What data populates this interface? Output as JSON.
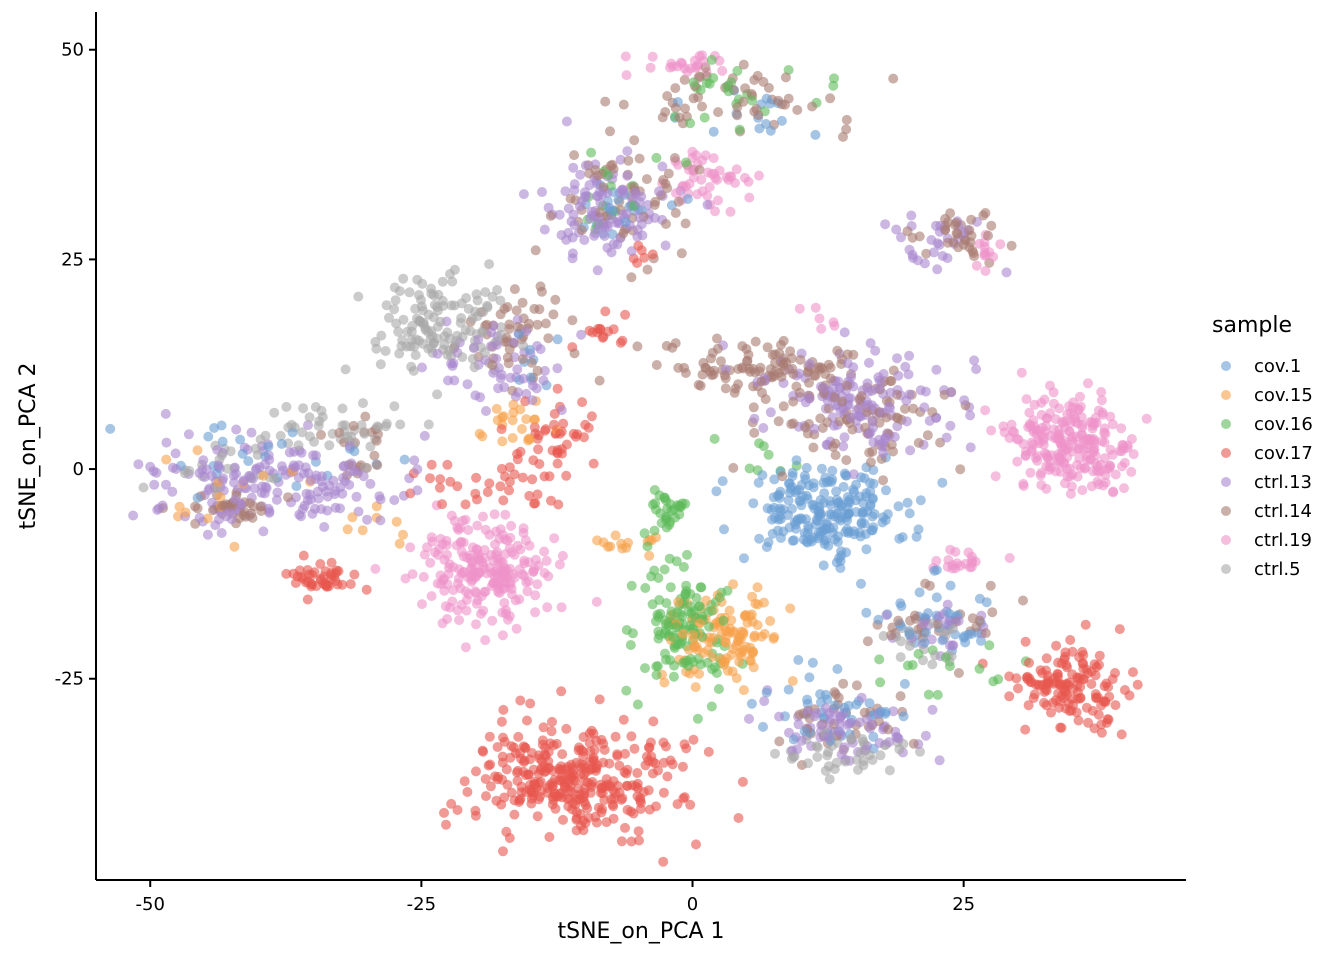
{
  "chart_data": {
    "type": "scatter",
    "xlabel": "tSNE_on_PCA 1",
    "ylabel": "tSNE_on_PCA 2",
    "xlim": [
      -55,
      45.5
    ],
    "ylim": [
      -49,
      54.5
    ],
    "x_ticks": [
      -50,
      -25,
      0,
      25
    ],
    "y_ticks": [
      50,
      25,
      0,
      -25
    ],
    "x_tick_labels": [
      "-50",
      "-25",
      "0",
      "25"
    ],
    "y_tick_labels": [
      "50",
      "25",
      "0",
      "-25"
    ],
    "grid": false,
    "legend": {
      "title": "sample",
      "placement": "right",
      "entries": [
        "cov.1",
        "cov.15",
        "cov.16",
        "cov.17",
        "ctrl.13",
        "ctrl.14",
        "ctrl.19",
        "ctrl.5"
      ]
    },
    "colors": {
      "cov.1": "#6a9ed4",
      "cov.15": "#f7a04a",
      "cov.16": "#5dbb5a",
      "cov.17": "#e8574f",
      "ctrl.13": "#a987cf",
      "ctrl.14": "#a87c72",
      "ctrl.19": "#ee93c9",
      "ctrl.5": "#a9a9a9"
    },
    "series": [
      {
        "name": "cov.1",
        "clusters": [
          [
            12,
            -5,
            5,
            3.5,
            220
          ],
          [
            13,
            -29,
            4,
            3,
            45
          ],
          [
            22,
            -18,
            4,
            3,
            45
          ],
          [
            -40,
            1,
            7,
            3,
            25
          ],
          [
            5,
            42,
            5,
            3,
            15
          ],
          [
            -7,
            31,
            3,
            3,
            20
          ],
          [
            -15,
            13,
            2,
            2,
            8
          ]
        ]
      },
      {
        "name": "cov.15",
        "clusters": [
          [
            3,
            -20,
            3.5,
            3.5,
            120
          ],
          [
            -16,
            6,
            2.5,
            2,
            22
          ],
          [
            -7,
            -9,
            3,
            1,
            14
          ],
          [
            -44,
            -2,
            5,
            4,
            14
          ],
          [
            -30,
            -6,
            3,
            2,
            8
          ]
        ]
      },
      {
        "name": "cov.16",
        "clusters": [
          [
            -1,
            -19,
            3,
            5,
            130
          ],
          [
            -2,
            -5,
            1.5,
            1.5,
            30
          ],
          [
            5,
            45,
            5,
            3,
            25
          ],
          [
            -8,
            32,
            4,
            3,
            15
          ],
          [
            22,
            -24,
            4,
            3,
            15
          ],
          [
            6,
            1,
            3,
            2,
            8
          ]
        ]
      },
      {
        "name": "cov.17",
        "clusters": [
          [
            -11,
            -37,
            6.5,
            4.5,
            330
          ],
          [
            35,
            -26,
            3.5,
            3.5,
            140
          ],
          [
            -34,
            -13,
            2,
            1.5,
            45
          ],
          [
            -13,
            4,
            2.5,
            3,
            40
          ],
          [
            -18,
            -2,
            5,
            2,
            35
          ],
          [
            -8,
            16,
            1.5,
            1.5,
            15
          ],
          [
            -5,
            25,
            1,
            1,
            6
          ]
        ]
      },
      {
        "name": "ctrl.13",
        "clusters": [
          [
            -38,
            -2,
            9,
            3.5,
            180
          ],
          [
            15,
            8,
            6,
            4,
            150
          ],
          [
            -8,
            31,
            4,
            4,
            110
          ],
          [
            14,
            -31,
            4.5,
            2.5,
            70
          ],
          [
            -18,
            12,
            5,
            4,
            55
          ],
          [
            23,
            27,
            3,
            3,
            30
          ],
          [
            23,
            -19,
            3,
            2,
            25
          ]
        ]
      },
      {
        "name": "ctrl.14",
        "clusters": [
          [
            7,
            12,
            6,
            2,
            100
          ],
          [
            -42,
            -5,
            3,
            1.5,
            35
          ],
          [
            -16,
            16,
            3,
            4,
            50
          ],
          [
            16,
            6,
            6,
            4,
            90
          ],
          [
            -6,
            32,
            4,
            4,
            60
          ],
          [
            4,
            44,
            7,
            3,
            55
          ],
          [
            24,
            28,
            3,
            2,
            35
          ],
          [
            14,
            -30,
            4,
            3,
            35
          ],
          [
            23,
            -18,
            4,
            3,
            30
          ],
          [
            -30,
            3,
            3,
            3,
            20
          ]
        ]
      },
      {
        "name": "ctrl.19",
        "clusters": [
          [
            -19,
            -12,
            4,
            4,
            220
          ],
          [
            35,
            3,
            4,
            3.5,
            230
          ],
          [
            1,
            34,
            3,
            2,
            45
          ],
          [
            0,
            48,
            3,
            1,
            25
          ],
          [
            25,
            -11,
            2,
            1,
            20
          ],
          [
            27,
            26,
            1.5,
            1.5,
            12
          ],
          [
            12,
            18,
            1,
            1,
            6
          ]
        ]
      },
      {
        "name": "ctrl.5",
        "clusters": [
          [
            -23,
            17,
            4,
            4,
            130
          ],
          [
            -33,
            5,
            5,
            3,
            45
          ],
          [
            -43,
            0,
            4,
            2,
            20
          ],
          [
            14,
            -34,
            4,
            2,
            45
          ],
          [
            22,
            -21,
            3,
            2,
            20
          ]
        ]
      }
    ]
  }
}
